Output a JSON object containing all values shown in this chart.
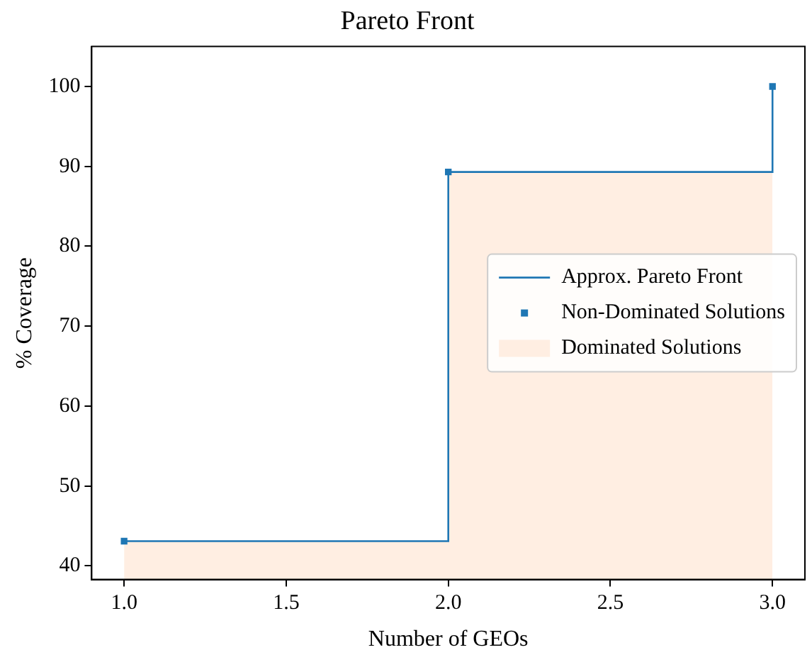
{
  "chart_data": {
    "type": "line",
    "title": "Pareto Front",
    "xlabel": "Number of GEOs",
    "ylabel": "% Coverage",
    "x": [
      1,
      2,
      3
    ],
    "series": [
      {
        "name": "Approx. Pareto Front",
        "type": "step",
        "color": "#1f77b4",
        "values": [
          43.1,
          89.3,
          100
        ],
        "marker": "none",
        "line_style": "solid"
      },
      {
        "name": "Non-Dominated Solutions",
        "type": "scatter",
        "color": "#1f77b4",
        "values": [
          43.1,
          89.3,
          100
        ],
        "marker": "square"
      },
      {
        "name": "Dominated Solutions",
        "type": "area",
        "color": "#ffeee2",
        "values": [
          43.1,
          89.3,
          89.3
        ]
      }
    ],
    "xlim": [
      0.9,
      3.1
    ],
    "xticks": [
      {
        "value": 1,
        "label": "1.0"
      },
      {
        "value": 1.5,
        "label": "1.5"
      },
      {
        "value": 2,
        "label": "2.0"
      },
      {
        "value": 2.5,
        "label": "2.5"
      },
      {
        "value": 3,
        "label": "3.0"
      }
    ],
    "ylim": [
      38.3,
      105
    ],
    "yticks": [
      40,
      50,
      60,
      70,
      80,
      90,
      100
    ],
    "grid": false,
    "legend": "center right"
  }
}
